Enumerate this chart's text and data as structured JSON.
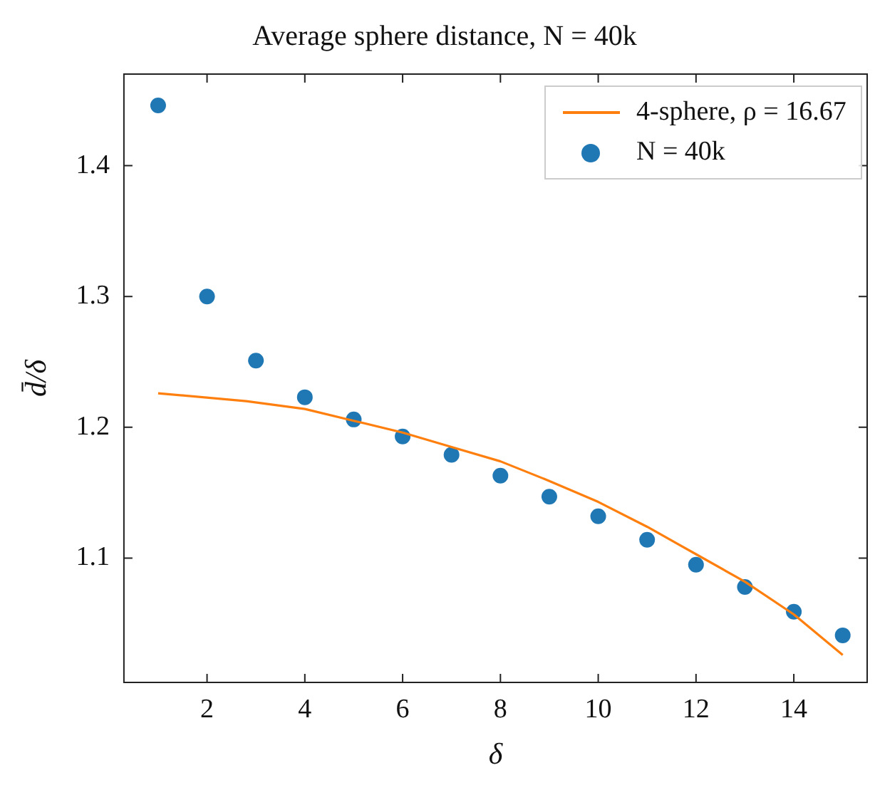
{
  "chart_data": {
    "type": "scatter",
    "title": "Average sphere distance, N = 40k",
    "xlabel": "δ",
    "ylabel": "d̄/δ",
    "xlim": [
      0.3,
      15.5
    ],
    "xticks": [
      2,
      4,
      6,
      8,
      10,
      12,
      14
    ],
    "ylim": [
      1.005,
      1.47
    ],
    "yticks": [
      1.1,
      1.2,
      1.3,
      1.4
    ],
    "grid": false,
    "legend": "top right",
    "series": [
      {
        "name": "4-sphere, ρ = 16.67",
        "type": "line",
        "marker": "none",
        "line_style": "solid",
        "color": "#ff7f0e",
        "x": [
          1,
          2.8,
          4,
          5,
          6,
          7,
          8,
          9,
          10,
          11,
          12,
          13,
          14,
          15
        ],
        "values": [
          1.226,
          1.22,
          1.214,
          1.205,
          1.196,
          1.185,
          1.174,
          1.159,
          1.143,
          1.124,
          1.103,
          1.082,
          1.057,
          1.026
        ]
      },
      {
        "name": "N = 40k",
        "marker": "circle",
        "color": "#1f77b4",
        "x": [
          1,
          2,
          3,
          4,
          5,
          6,
          7,
          8,
          9,
          10,
          11,
          12,
          13,
          14,
          15
        ],
        "values": [
          1.446,
          1.3,
          1.251,
          1.223,
          1.206,
          1.193,
          1.179,
          1.163,
          1.147,
          1.132,
          1.114,
          1.095,
          1.078,
          1.059,
          1.041
        ]
      }
    ]
  }
}
